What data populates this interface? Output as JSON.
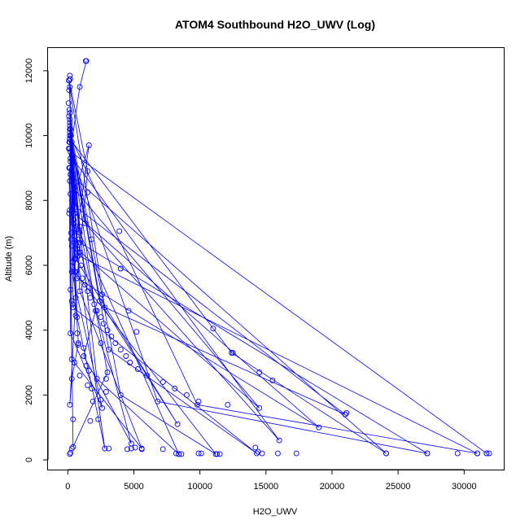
{
  "chart_data": {
    "type": "line",
    "title": "ATOM4 Southbound H2O_UWV (Log)",
    "xlabel": "H2O_UWV",
    "ylabel": "Altitude (m)",
    "xlim": [
      -1500,
      33000
    ],
    "ylim": [
      -300,
      12700
    ],
    "x_ticks": [
      "0",
      "5000",
      "10000",
      "15000",
      "20000",
      "25000",
      "30000"
    ],
    "y_ticks": [
      "0",
      "2000",
      "4000",
      "6000",
      "8000",
      "10000",
      "12000"
    ],
    "grid": false,
    "legend": "none",
    "series_color": "#0000ff",
    "marker": "open-circle",
    "series": [
      {
        "x": [
          1400,
          900,
          300,
          150,
          400,
          800,
          300,
          150,
          600,
          200,
          150,
          900,
          3000,
          400,
          150,
          1600,
          300,
          2600,
          200,
          100,
          600,
          14500,
          700,
          150,
          2100,
          1200,
          4800,
          400,
          150,
          600,
          8300,
          2400,
          150,
          1300,
          16000,
          350,
          100,
          1500,
          700,
          19000,
          500,
          200,
          31700
        ],
        "y": [
          12300,
          11500,
          9800,
          8600,
          6100,
          3600,
          2500,
          1700,
          5000,
          9300,
          10700,
          7200,
          2700,
          400,
          7700,
          9700,
          5800,
          1600,
          3900,
          9000,
          8300,
          1600,
          6500,
          10000,
          4600,
          3200,
          500,
          7300,
          9900,
          6200,
          1100,
          4900,
          10100,
          7300,
          600,
          9300,
          11700,
          8900,
          5600,
          1000,
          7600,
          9500,
          200
        ]
      },
      {
        "x": [
          100,
          500,
          2800,
          700,
          150,
          900,
          5600,
          300,
          150,
          2200,
          8400,
          900,
          150,
          4000,
          11200,
          500,
          150,
          6800,
          27200,
          900,
          150,
          3100,
          14300,
          400,
          150,
          2800,
          21000,
          600,
          150,
          9800,
          31000,
          800,
          150,
          12400,
          24100,
          200
        ],
        "y": [
          11700,
          6900,
          350,
          4400,
          10500,
          5200,
          350,
          3100,
          9800,
          2500,
          180,
          7000,
          10300,
          2000,
          180,
          5800,
          9600,
          1800,
          200,
          6700,
          10200,
          3400,
          200,
          4700,
          11500,
          4700,
          1400,
          7800,
          10000,
          1700,
          200,
          6300,
          9900,
          3300,
          200,
          8800
        ]
      }
    ],
    "points": {
      "x": [
        1350,
        150,
        80,
        180,
        100,
        60,
        120,
        90,
        150,
        200,
        250,
        110,
        80,
        300,
        200,
        150,
        400,
        300,
        500,
        200,
        350,
        600,
        100,
        450,
        700,
        250,
        800,
        300,
        900,
        500,
        1000,
        600,
        1100,
        1300,
        1500,
        1700,
        2000,
        2200,
        2500,
        2700,
        3000,
        3300,
        3600,
        4000,
        4400,
        4700,
        5300,
        6000,
        7200,
        8100,
        9000,
        9900,
        11000,
        12100,
        12500,
        14500,
        15500,
        21000,
        21100,
        1500,
        1800,
        2600,
        2900,
        200,
        300,
        500,
        900,
        1400,
        1800,
        2500,
        2900,
        3100,
        4500,
        4800,
        5100,
        5600,
        7200,
        8200,
        8400,
        8600,
        9900,
        10100,
        11300,
        11500,
        14200,
        14400,
        14700,
        15900,
        17300,
        24100,
        27200,
        29500,
        31000,
        31700,
        31900,
        3900,
        4000,
        4600,
        5200,
        1200,
        1500,
        1900,
        2300,
        2500,
        600,
        700,
        800,
        1600,
        1700,
        300,
        400,
        250,
        350,
        200,
        150
      ],
      "y": [
        12300,
        11850,
        11700,
        11750,
        11400,
        11000,
        10800,
        10600,
        10400,
        10200,
        10000,
        9800,
        9600,
        9400,
        9200,
        9000,
        8800,
        8600,
        8400,
        8200,
        8000,
        7800,
        7600,
        7400,
        7200,
        7000,
        6800,
        6600,
        6400,
        6200,
        6000,
        5800,
        5600,
        5400,
        5200,
        5000,
        4800,
        4600,
        4400,
        4200,
        4000,
        3800,
        3600,
        3400,
        3200,
        3000,
        2800,
        2600,
        2400,
        2200,
        2000,
        1800,
        4050,
        1700,
        3300,
        2700,
        2450,
        1400,
        1450,
        8250,
        6800,
        5100,
        2500,
        5250,
        4900,
        3000,
        2600,
        2900,
        2200,
        3600,
        2100,
        350,
        330,
        350,
        380,
        330,
        330,
        200,
        180,
        180,
        200,
        200,
        180,
        180,
        380,
        250,
        200,
        200,
        200,
        200,
        200,
        200,
        200,
        200,
        200,
        7050,
        5900,
        4600,
        3950,
        3450,
        2300,
        1800,
        1250,
        1850,
        4450,
        3900,
        3550,
        2750,
        1200,
        350,
        1250,
        6800,
        4800,
        220,
        180
      ]
    }
  }
}
